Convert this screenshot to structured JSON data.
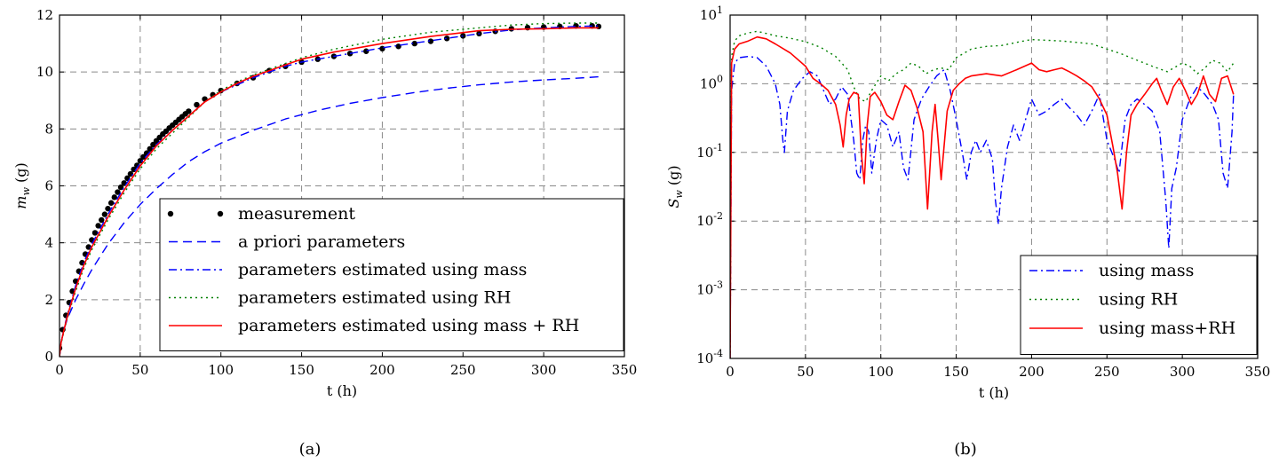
{
  "chart_data": [
    {
      "type": "line",
      "panel_label": "(a)",
      "xlabel": "t (h)",
      "ylabel_main": "m",
      "ylabel_sub": "w",
      "ylabel_unit": " (g)",
      "xlim": [
        0,
        350
      ],
      "ylim": [
        0,
        12
      ],
      "xticks": [
        "0",
        "50",
        "100",
        "150",
        "200",
        "250",
        "300",
        "350"
      ],
      "yticks": [
        "0",
        "2",
        "4",
        "6",
        "8",
        "10",
        "12"
      ],
      "grid": true,
      "legend_position": "lower-right",
      "series": [
        {
          "name": "measurement",
          "style": "dots",
          "color": "#000000",
          "x": [
            0,
            2,
            4,
            6,
            8,
            10,
            12,
            14,
            16,
            18,
            20,
            22,
            24,
            26,
            28,
            30,
            32,
            34,
            36,
            38,
            40,
            42,
            44,
            46,
            48,
            50,
            52,
            54,
            56,
            58,
            60,
            62,
            64,
            66,
            68,
            70,
            72,
            74,
            76,
            78,
            80,
            85,
            90,
            95,
            100,
            110,
            120,
            130,
            140,
            150,
            160,
            170,
            180,
            190,
            200,
            210,
            220,
            230,
            240,
            250,
            260,
            270,
            280,
            290,
            300,
            310,
            320,
            330,
            334
          ],
          "y": [
            0.3,
            0.95,
            1.45,
            1.9,
            2.3,
            2.65,
            3.0,
            3.3,
            3.6,
            3.85,
            4.1,
            4.35,
            4.6,
            4.8,
            5.0,
            5.2,
            5.4,
            5.6,
            5.78,
            5.95,
            6.1,
            6.27,
            6.42,
            6.58,
            6.72,
            6.88,
            7.02,
            7.15,
            7.3,
            7.45,
            7.58,
            7.7,
            7.82,
            7.92,
            8.03,
            8.13,
            8.23,
            8.33,
            8.43,
            8.53,
            8.62,
            8.85,
            9.05,
            9.2,
            9.35,
            9.6,
            9.8,
            10.05,
            10.2,
            10.35,
            10.45,
            10.55,
            10.65,
            10.73,
            10.82,
            10.9,
            11.0,
            11.08,
            11.18,
            11.27,
            11.35,
            11.43,
            11.52,
            11.56,
            11.58,
            11.6,
            11.62,
            11.62,
            11.6
          ]
        },
        {
          "name": "a priori parameters",
          "style": "dashed",
          "color": "#0000ff",
          "x": [
            0,
            1,
            3,
            5,
            10,
            15,
            20,
            30,
            40,
            50,
            60,
            70,
            80,
            90,
            100,
            120,
            140,
            160,
            180,
            200,
            220,
            240,
            260,
            280,
            300,
            320,
            334
          ],
          "y": [
            0,
            0.5,
            1.0,
            1.35,
            2.0,
            2.55,
            3.05,
            3.95,
            4.7,
            5.35,
            5.9,
            6.4,
            6.85,
            7.2,
            7.5,
            7.95,
            8.35,
            8.65,
            8.9,
            9.1,
            9.28,
            9.43,
            9.55,
            9.65,
            9.72,
            9.78,
            9.83
          ]
        },
        {
          "name": "parameters estimated using mass",
          "style": "dashdot",
          "color": "#0000ff",
          "x": [
            0,
            1,
            3,
            5,
            10,
            15,
            20,
            30,
            40,
            50,
            60,
            70,
            80,
            90,
            100,
            110,
            120,
            130,
            140,
            150,
            170,
            200,
            230,
            260,
            280,
            300,
            320,
            334
          ],
          "y": [
            0,
            0.5,
            1.05,
            1.5,
            2.5,
            3.3,
            3.95,
            5.0,
            5.95,
            6.8,
            7.45,
            7.95,
            8.45,
            8.95,
            9.3,
            9.55,
            9.8,
            10.0,
            10.2,
            10.35,
            10.55,
            10.85,
            11.1,
            11.35,
            11.48,
            11.55,
            11.6,
            11.62
          ]
        },
        {
          "name": "parameters estimated using RH",
          "style": "dotted",
          "color": "#008000",
          "x": [
            0,
            1,
            3,
            5,
            10,
            15,
            20,
            30,
            40,
            50,
            60,
            70,
            80,
            90,
            100,
            110,
            120,
            130,
            140,
            150,
            170,
            200,
            230,
            260,
            280,
            300,
            320,
            334
          ],
          "y": [
            0,
            0.45,
            0.95,
            1.4,
            2.3,
            3.1,
            3.75,
            4.8,
            5.75,
            6.6,
            7.3,
            7.85,
            8.4,
            8.95,
            9.35,
            9.65,
            9.9,
            10.1,
            10.3,
            10.5,
            10.8,
            11.15,
            11.4,
            11.55,
            11.65,
            11.7,
            11.72,
            11.72
          ]
        },
        {
          "name": "parameters estimated using mass + RH",
          "style": "solid",
          "color": "#ff0000",
          "x": [
            0,
            1,
            3,
            5,
            10,
            15,
            20,
            30,
            40,
            50,
            60,
            70,
            80,
            90,
            100,
            110,
            120,
            130,
            140,
            150,
            170,
            200,
            230,
            260,
            280,
            300,
            320,
            334
          ],
          "y": [
            0,
            0.5,
            1.0,
            1.45,
            2.4,
            3.2,
            3.85,
            4.9,
            5.85,
            6.7,
            7.4,
            7.95,
            8.45,
            8.95,
            9.3,
            9.6,
            9.85,
            10.05,
            10.25,
            10.45,
            10.7,
            11.0,
            11.25,
            11.45,
            11.5,
            11.52,
            11.55,
            11.55
          ]
        }
      ]
    },
    {
      "type": "line",
      "panel_label": "(b)",
      "xlabel": "t (h)",
      "ylabel_main": "S",
      "ylabel_sub": "w",
      "ylabel_unit": " (g)",
      "xlim": [
        0,
        350
      ],
      "ylim": [
        0.0001,
        10
      ],
      "yscale": "log",
      "xticks": [
        "0",
        "50",
        "100",
        "150",
        "200",
        "250",
        "300",
        "350"
      ],
      "yticks": [
        {
          "base": "10",
          "exp": "-4"
        },
        {
          "base": "10",
          "exp": "-3"
        },
        {
          "base": "10",
          "exp": "-2"
        },
        {
          "base": "10",
          "exp": "-1"
        },
        {
          "base": "10",
          "exp": "0"
        },
        {
          "base": "10",
          "exp": "1"
        }
      ],
      "grid": true,
      "legend_position": "lower-right",
      "series": [
        {
          "name": "using mass",
          "style": "dashdot",
          "color": "#0000ff",
          "x": [
            0,
            1,
            3,
            6,
            12,
            18,
            24,
            30,
            33,
            35,
            36,
            38,
            42,
            48,
            53,
            58,
            62,
            66,
            70,
            74,
            78,
            82,
            84,
            86,
            88,
            90,
            92,
            94,
            97,
            100,
            104,
            108,
            112,
            115,
            118,
            122,
            127,
            132,
            137,
            142,
            146,
            150,
            154,
            157,
            160,
            163,
            166,
            170,
            174,
            176,
            178,
            180,
            184,
            188,
            192,
            196,
            200,
            205,
            210,
            215,
            220,
            225,
            230,
            235,
            240,
            245,
            250,
            255,
            258,
            262,
            266,
            270,
            275,
            280,
            285,
            289,
            291,
            293,
            296,
            300,
            305,
            310,
            315,
            320,
            324,
            327,
            330,
            333,
            334
          ],
          "y": [
            0.0001,
            0.8,
            2.0,
            2.4,
            2.5,
            2.4,
            1.8,
            1.0,
            0.5,
            0.15,
            0.1,
            0.4,
            0.8,
            1.2,
            1.5,
            1.3,
            0.8,
            0.5,
            0.6,
            0.9,
            0.7,
            0.15,
            0.05,
            0.04,
            0.15,
            0.25,
            0.2,
            0.05,
            0.15,
            0.3,
            0.25,
            0.12,
            0.2,
            0.06,
            0.04,
            0.3,
            0.6,
            0.9,
            1.3,
            1.6,
            0.8,
            0.3,
            0.1,
            0.04,
            0.1,
            0.15,
            0.1,
            0.15,
            0.08,
            0.02,
            0.009,
            0.03,
            0.12,
            0.25,
            0.15,
            0.3,
            0.6,
            0.35,
            0.4,
            0.5,
            0.6,
            0.45,
            0.35,
            0.25,
            0.4,
            0.7,
            0.15,
            0.08,
            0.05,
            0.3,
            0.5,
            0.6,
            0.5,
            0.4,
            0.2,
            0.02,
            0.004,
            0.03,
            0.06,
            0.3,
            0.6,
            0.9,
            0.7,
            0.5,
            0.3,
            0.05,
            0.03,
            0.2,
            0.7
          ]
        },
        {
          "name": "using RH",
          "style": "dotted",
          "color": "#008000",
          "x": [
            0,
            1,
            3,
            6,
            12,
            18,
            24,
            30,
            40,
            50,
            60,
            70,
            78,
            82,
            86,
            90,
            94,
            100,
            105,
            110,
            115,
            120,
            125,
            130,
            135,
            140,
            145,
            150,
            160,
            170,
            180,
            190,
            200,
            210,
            220,
            230,
            240,
            250,
            260,
            270,
            280,
            290,
            300,
            305,
            310,
            315,
            320,
            325,
            330,
            334
          ],
          "y": [
            0.0001,
            2.5,
            4.2,
            5.0,
            5.5,
            5.8,
            5.4,
            5.0,
            4.6,
            4.1,
            3.4,
            2.5,
            1.6,
            0.9,
            0.6,
            0.55,
            0.8,
            1.3,
            1.1,
            1.4,
            1.6,
            2.0,
            1.8,
            1.4,
            1.6,
            1.7,
            1.6,
            2.4,
            3.2,
            3.5,
            3.6,
            4.0,
            4.4,
            4.3,
            4.2,
            4.0,
            3.8,
            3.2,
            2.7,
            2.2,
            1.8,
            1.5,
            2.0,
            1.8,
            1.4,
            1.7,
            2.2,
            2.0,
            1.5,
            2.0
          ]
        },
        {
          "name": "using mass+RH",
          "style": "solid",
          "color": "#ff0000",
          "x": [
            0,
            1,
            3,
            6,
            12,
            18,
            24,
            30,
            40,
            50,
            55,
            60,
            65,
            70,
            73,
            75,
            77,
            79,
            82,
            85,
            87,
            89,
            91,
            93,
            96,
            100,
            104,
            108,
            112,
            116,
            120,
            124,
            128,
            131,
            134,
            136,
            138,
            140,
            144,
            148,
            152,
            156,
            160,
            170,
            180,
            190,
            200,
            205,
            210,
            215,
            220,
            225,
            230,
            235,
            240,
            245,
            250,
            254,
            257,
            260,
            263,
            266,
            270,
            275,
            280,
            283,
            286,
            290,
            294,
            298,
            302,
            306,
            310,
            314,
            318,
            322,
            326,
            330,
            334
          ],
          "y": [
            0.0001,
            2.0,
            3.2,
            3.8,
            4.2,
            4.8,
            4.5,
            3.8,
            2.8,
            1.8,
            1.2,
            1.0,
            0.8,
            0.5,
            0.25,
            0.12,
            0.35,
            0.6,
            0.75,
            0.7,
            0.1,
            0.035,
            0.25,
            0.65,
            0.75,
            0.55,
            0.35,
            0.3,
            0.55,
            0.95,
            0.8,
            0.45,
            0.2,
            0.015,
            0.2,
            0.5,
            0.15,
            0.04,
            0.4,
            0.8,
            1.0,
            1.2,
            1.3,
            1.4,
            1.3,
            1.6,
            2.0,
            1.6,
            1.5,
            1.6,
            1.7,
            1.5,
            1.3,
            1.1,
            0.9,
            0.6,
            0.35,
            0.12,
            0.05,
            0.015,
            0.1,
            0.35,
            0.5,
            0.7,
            1.0,
            1.2,
            0.8,
            0.5,
            0.9,
            1.2,
            0.8,
            0.5,
            0.7,
            1.3,
            0.7,
            0.55,
            1.2,
            1.3,
            0.7
          ]
        }
      ]
    }
  ]
}
